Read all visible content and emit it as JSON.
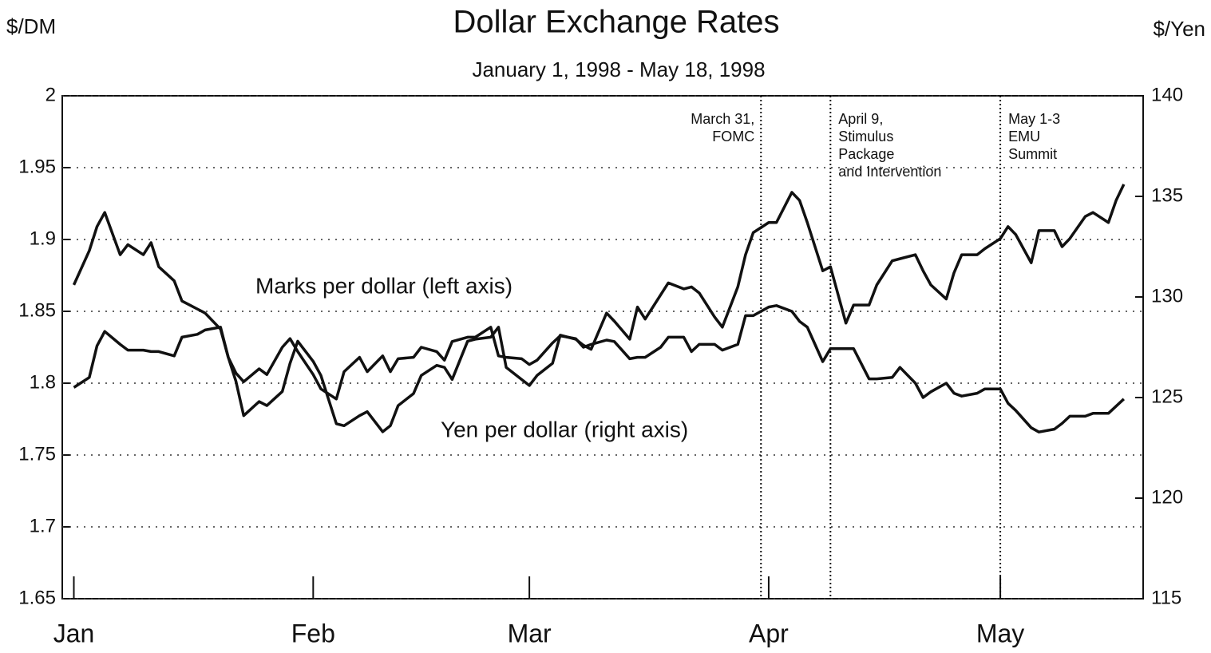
{
  "chart_data": {
    "type": "line",
    "title": "Dollar Exchange Rates",
    "subtitle": "January 1, 1998 - May 18, 1998",
    "y_label": "$/DM",
    "y2_label": "$/Yen",
    "x": [
      0,
      2,
      3,
      4,
      6,
      7,
      9,
      10,
      11,
      13,
      14,
      16,
      17,
      19,
      20,
      21,
      22,
      24,
      25,
      27,
      28,
      29,
      31,
      32,
      34,
      35,
      37,
      38,
      40,
      41,
      42,
      44,
      45,
      47,
      48,
      49,
      51,
      52,
      54,
      55,
      56,
      58,
      59,
      60,
      62,
      63,
      65,
      66,
      67,
      69,
      70,
      72,
      73,
      74,
      76,
      77,
      79,
      80,
      81,
      83,
      84,
      86,
      87,
      88,
      90,
      91,
      93,
      94,
      95,
      97,
      98,
      100,
      101,
      103,
      104,
      106,
      107,
      109,
      110,
      111,
      113,
      114,
      115,
      117,
      118,
      120,
      121,
      122,
      124,
      125,
      127,
      128,
      129,
      131,
      132,
      134,
      135,
      136
    ],
    "xlim": [
      -1.5,
      138.5
    ],
    "xticks": [
      {
        "value": 0,
        "label": "Jan"
      },
      {
        "value": 31,
        "label": "Feb"
      },
      {
        "value": 59,
        "label": "Mar"
      },
      {
        "value": 90,
        "label": "Apr"
      },
      {
        "value": 120,
        "label": "May"
      }
    ],
    "ylim": [
      1.65,
      2
    ],
    "yticks": [
      1.65,
      1.7,
      1.75,
      1.8,
      1.85,
      1.9,
      1.95,
      2
    ],
    "y2lim": [
      115,
      140
    ],
    "y2ticks": [
      115,
      120,
      125,
      130,
      135,
      140
    ],
    "grid": true,
    "series": [
      {
        "name": "Marks per dollar (left axis)",
        "color": "#111111",
        "axis": "y",
        "values": [
          1.797,
          1.804,
          1.826,
          1.836,
          1.827,
          1.823,
          1.823,
          1.822,
          1.822,
          1.819,
          1.832,
          1.834,
          1.837,
          1.839,
          1.818,
          1.807,
          1.801,
          1.81,
          1.806,
          1.825,
          1.831,
          1.822,
          1.806,
          1.796,
          1.789,
          1.808,
          1.818,
          1.808,
          1.819,
          1.808,
          1.817,
          1.818,
          1.825,
          1.822,
          1.816,
          1.829,
          1.832,
          1.832,
          1.839,
          1.819,
          1.818,
          1.817,
          1.813,
          1.816,
          1.828,
          1.833,
          1.831,
          1.825,
          1.827,
          1.83,
          1.829,
          1.817,
          1.818,
          1.818,
          1.825,
          1.832,
          1.832,
          1.822,
          1.827,
          1.827,
          1.823,
          1.827,
          1.847,
          1.847,
          1.853,
          1.854,
          1.85,
          1.843,
          1.839,
          1.815,
          1.824,
          1.824,
          1.824,
          1.803,
          1.803,
          1.804,
          1.811,
          1.8,
          1.79,
          1.794,
          1.8,
          1.793,
          1.791,
          1.793,
          1.796,
          1.796,
          1.786,
          1.781,
          1.769,
          1.766,
          1.768,
          1.772,
          1.777,
          1.777,
          1.779,
          1.779,
          1.784,
          1.789
        ]
      },
      {
        "name": "Yen per dollar (right axis)",
        "color": "#111111",
        "axis": "y2",
        "values": [
          130.6,
          132.3,
          133.5,
          134.2,
          132.1,
          132.6,
          132.1,
          132.7,
          131.5,
          130.8,
          129.8,
          129.4,
          129.2,
          128.4,
          127.0,
          125.8,
          124.1,
          124.8,
          124.6,
          125.3,
          126.7,
          127.8,
          126.8,
          126.1,
          123.7,
          123.6,
          124.1,
          124.3,
          123.3,
          123.6,
          124.6,
          125.2,
          126.1,
          126.6,
          126.5,
          125.9,
          127.8,
          127.9,
          128.0,
          128.5,
          126.5,
          125.9,
          125.6,
          126.1,
          126.7,
          128.1,
          127.9,
          127.6,
          127.4,
          129.2,
          128.8,
          127.9,
          129.5,
          128.9,
          130.1,
          130.7,
          130.4,
          130.5,
          130.2,
          129.0,
          128.5,
          130.5,
          132.1,
          133.2,
          133.7,
          133.7,
          135.2,
          134.8,
          133.7,
          131.3,
          131.5,
          128.7,
          129.6,
          129.6,
          130.6,
          131.8,
          131.9,
          132.1,
          131.3,
          130.6,
          129.9,
          131.2,
          132.1,
          132.1,
          132.4,
          132.9,
          133.5,
          133.1,
          131.7,
          133.3,
          133.3,
          132.5,
          132.9,
          134.0,
          134.2,
          133.7,
          134.8,
          135.6
        ]
      }
    ],
    "annotations": [
      {
        "x": 89,
        "lines": [
          "March 31,",
          "FOMC"
        ]
      },
      {
        "x": 98,
        "lines": [
          "April 9,",
          "Stimulus",
          "Package",
          "and Intervention"
        ]
      },
      {
        "x": 120,
        "lines": [
          "May 1-3",
          "EMU",
          "Summit"
        ]
      }
    ]
  }
}
